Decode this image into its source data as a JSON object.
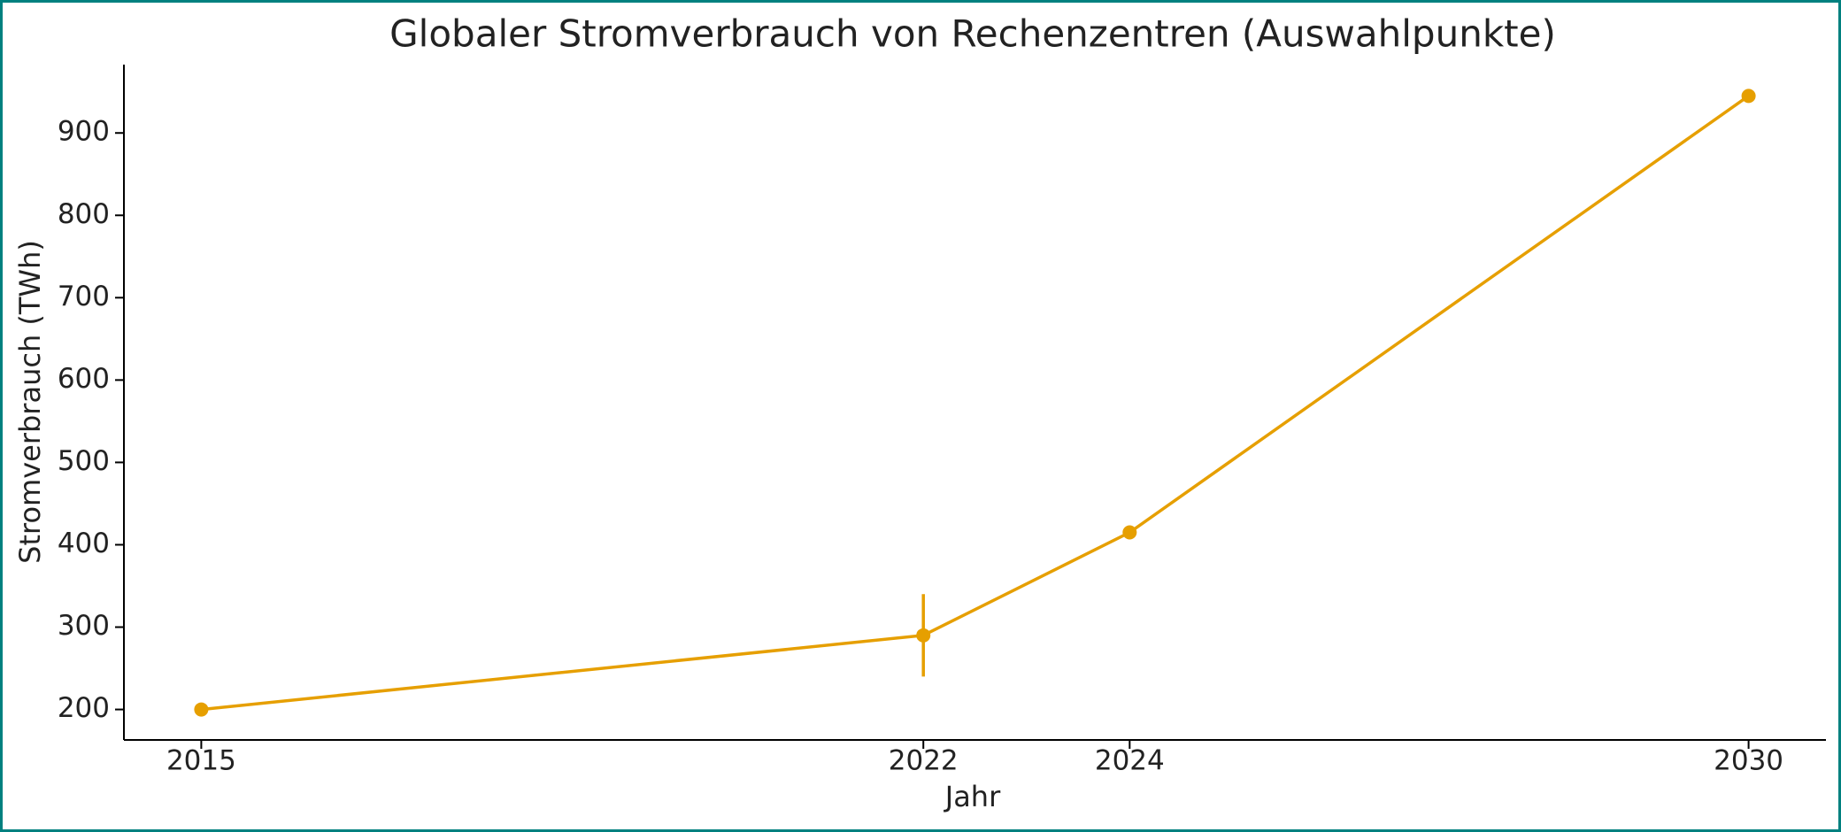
{
  "chart_data": {
    "type": "line",
    "title": "Globaler Stromverbrauch von Rechenzentren (Auswahlpunkte)",
    "x_label": "Jahr",
    "y_label": "Stromverbrauch (TWh)",
    "x": [
      2015,
      2022,
      2024,
      2030
    ],
    "series": [
      {
        "color": "#e69f00",
        "values": [
          200,
          290,
          415,
          945
        ],
        "errors": [
          null,
          50,
          null,
          null
        ]
      }
    ],
    "xlim": [
      2014.25,
      2030.75
    ],
    "xticks": [
      2015,
      2022,
      2024,
      2030
    ],
    "ylim": [
      163,
      983
    ],
    "yticks": [
      200,
      300,
      400,
      500,
      600,
      700,
      800,
      900
    ],
    "grid": false
  }
}
